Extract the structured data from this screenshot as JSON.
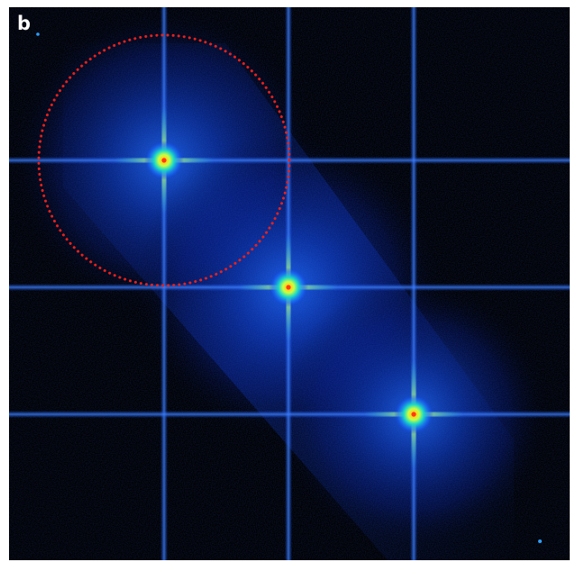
{
  "figure": {
    "panel_label": "b",
    "colors": {
      "background": "#000000",
      "streak": "#1a57ff",
      "halo": "#0a3ad6",
      "core_mid": "#19d8c8",
      "core_hot": "#f2ff30",
      "core_center": "#ff3a10",
      "marker_circle": "#e8201a"
    },
    "peak_count": 3,
    "marker": "dotted-circle"
  }
}
